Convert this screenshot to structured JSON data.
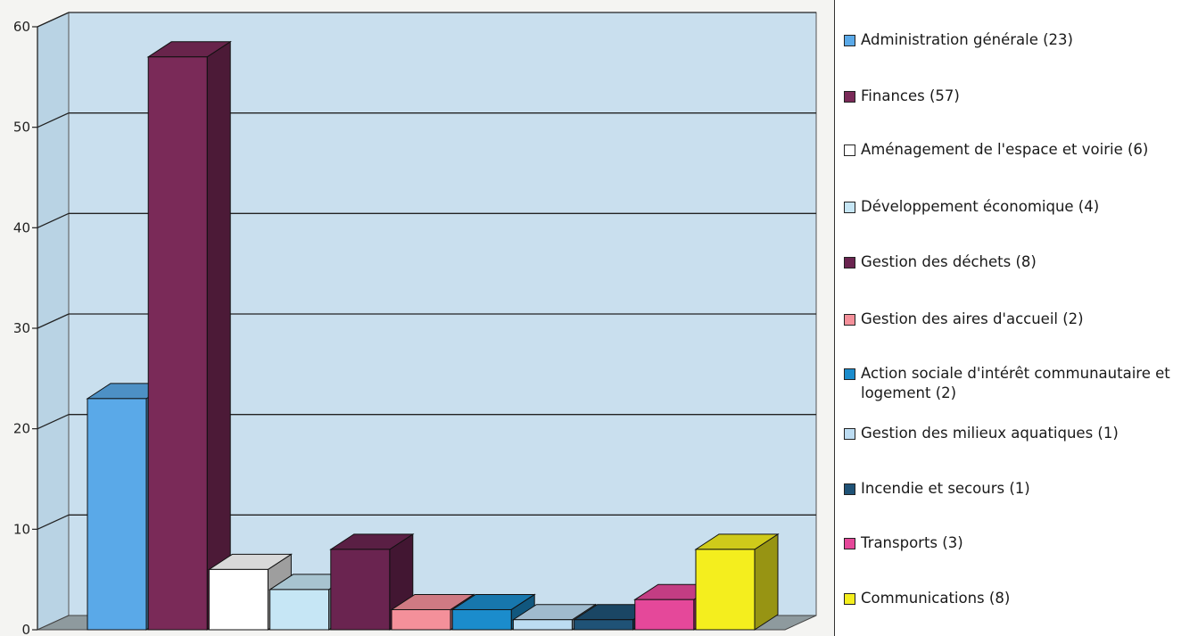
{
  "chart_data": {
    "type": "bar",
    "categories": [
      "Administration générale (23)",
      "Finances (57)",
      "Aménagement de l'espace et voirie (6)",
      "Développement économique (4)",
      "Gestion des déchets (8)",
      "Gestion des aires d'accueil (2)",
      "Action sociale d'intérêt communautaire et logement (2)",
      "Gestion des milieux aquatiques (1)",
      "Incendie et secours (1)",
      "Transports (3)",
      "Communications (8)"
    ],
    "values": [
      23,
      57,
      6,
      4,
      8,
      2,
      2,
      1,
      1,
      3,
      8
    ],
    "colors": [
      "#5aa9e8",
      "#7a2a58",
      "#ffffff",
      "#c6e6f5",
      "#6a2450",
      "#f4909a",
      "#1b8ccc",
      "#bcdcf2",
      "#1f5276",
      "#e5489a",
      "#f4ee1e"
    ],
    "ylim": [
      0,
      60
    ],
    "yticks": [
      "0",
      "10",
      "20",
      "30",
      "40",
      "50",
      "60"
    ],
    "grid": true,
    "three_d": true,
    "legend_position": "right",
    "title": "",
    "xlabel": "",
    "ylabel": ""
  }
}
